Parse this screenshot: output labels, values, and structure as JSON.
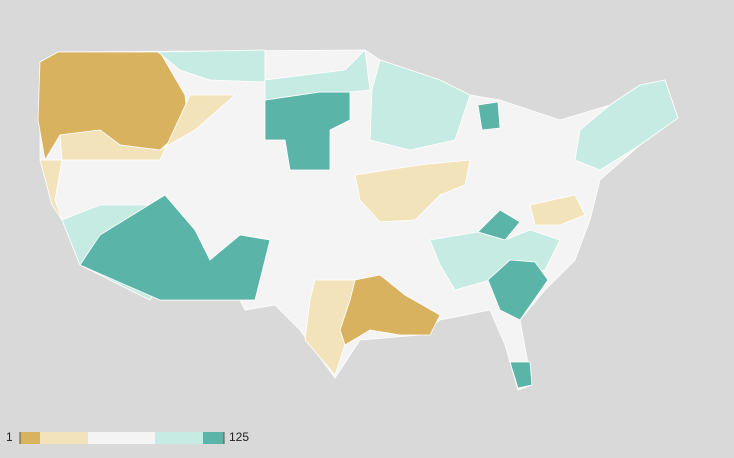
{
  "legend": {
    "min": "1",
    "max": "125",
    "colors": [
      "#d8b25f",
      "#f3e3bb",
      "#f4f4f4",
      "#c5ebe3",
      "#5ab4a8"
    ]
  },
  "background": "#d9d9d9"
}
